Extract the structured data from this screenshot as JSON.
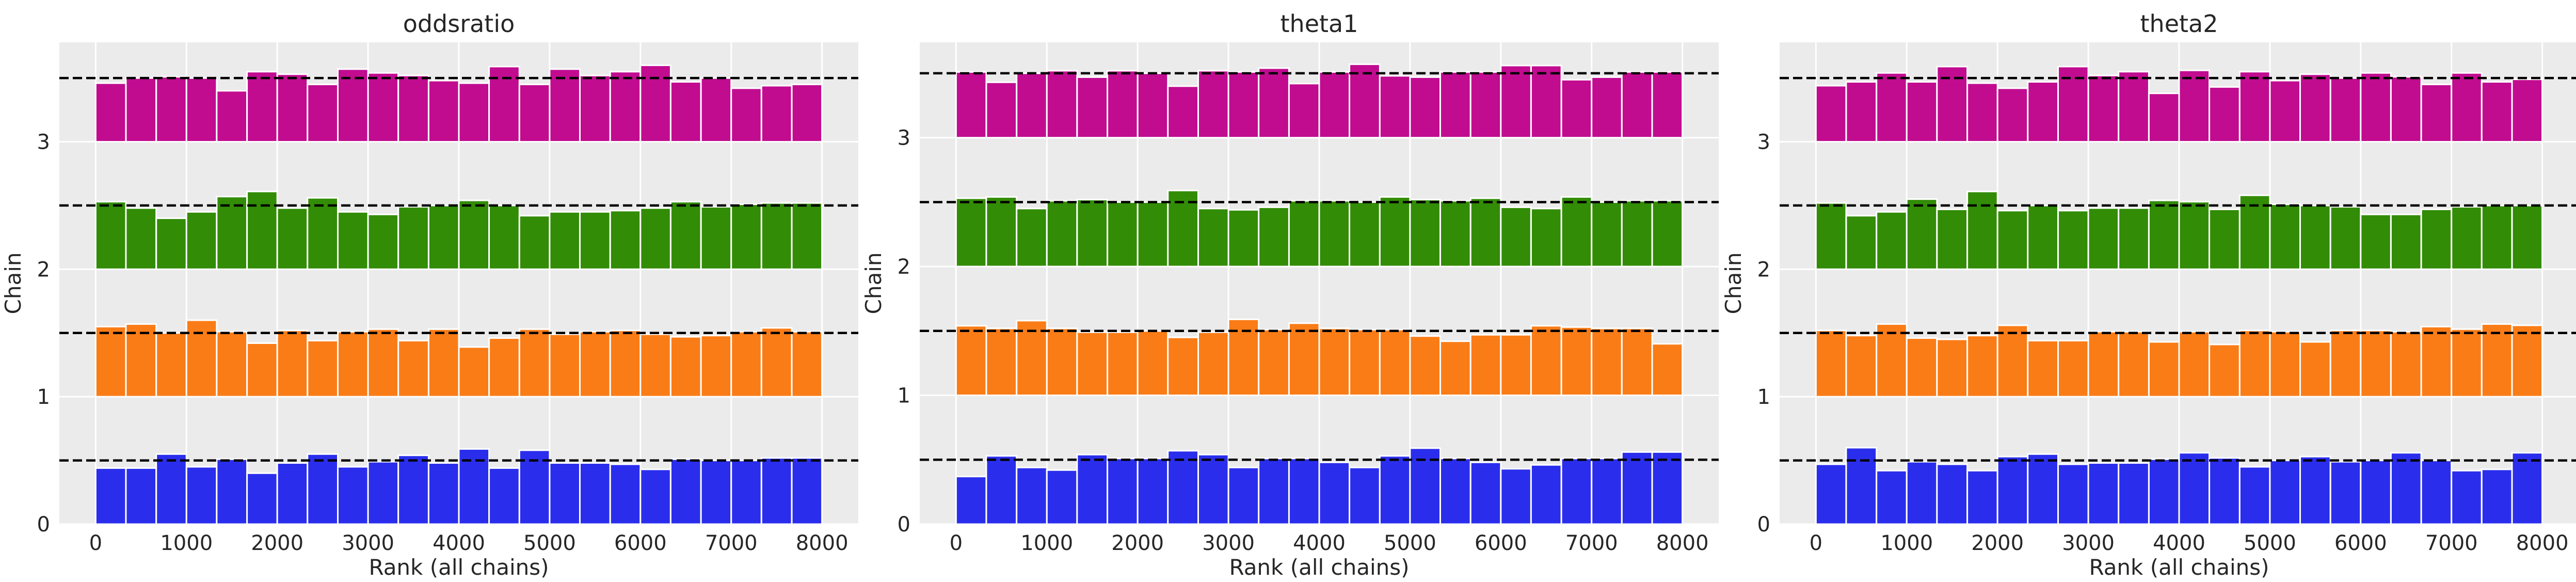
{
  "figure": {
    "colors": {
      "panel_bg": "#ebebeb",
      "grid": "#ffffff",
      "chain_colors": [
        "#2a2eec",
        "#fa7c17",
        "#328c06",
        "#c10c90"
      ],
      "reference_line": "#000000"
    }
  },
  "chart_data": [
    {
      "type": "bar",
      "title": "oddsratio",
      "xlabel": "Rank (all chains)",
      "ylabel": "Chain",
      "xlim": [
        -400,
        8400
      ],
      "xticks": [
        0,
        1000,
        2000,
        3000,
        4000,
        5000,
        6000,
        7000,
        8000
      ],
      "xtick_labels": [
        "0",
        "1000",
        "2000",
        "3000",
        "4000",
        "5000",
        "6000",
        "7000",
        "8000"
      ],
      "ylim": [
        0,
        3.78
      ],
      "yticks": [
        0,
        1,
        2,
        3
      ],
      "ytick_labels": [
        "0",
        "1",
        "2",
        "3"
      ],
      "grid": true,
      "bin_edges": [
        0,
        333,
        667,
        1000,
        1333,
        1667,
        2000,
        2333,
        2667,
        3000,
        3333,
        3667,
        4000,
        4333,
        4667,
        5000,
        5333,
        5667,
        6000,
        6333,
        6667,
        7000,
        7333,
        7667,
        8000
      ],
      "reference_offset": 0.5,
      "series": [
        {
          "chain": 0,
          "values": [
            0.44,
            0.44,
            0.55,
            0.45,
            0.51,
            0.4,
            0.48,
            0.55,
            0.45,
            0.49,
            0.54,
            0.48,
            0.59,
            0.44,
            0.58,
            0.48,
            0.48,
            0.47,
            0.43,
            0.51,
            0.5,
            0.5,
            0.52,
            0.52
          ]
        },
        {
          "chain": 1,
          "values": [
            0.55,
            0.57,
            0.5,
            0.6,
            0.51,
            0.42,
            0.52,
            0.44,
            0.51,
            0.53,
            0.44,
            0.53,
            0.39,
            0.46,
            0.53,
            0.49,
            0.51,
            0.52,
            0.49,
            0.47,
            0.48,
            0.51,
            0.54,
            0.51
          ]
        },
        {
          "chain": 2,
          "values": [
            0.53,
            0.48,
            0.4,
            0.45,
            0.57,
            0.61,
            0.48,
            0.56,
            0.45,
            0.43,
            0.49,
            0.5,
            0.54,
            0.5,
            0.42,
            0.45,
            0.45,
            0.46,
            0.48,
            0.53,
            0.49,
            0.51,
            0.52,
            0.52
          ]
        },
        {
          "chain": 3,
          "values": [
            0.46,
            0.5,
            0.51,
            0.5,
            0.4,
            0.55,
            0.53,
            0.45,
            0.57,
            0.54,
            0.52,
            0.48,
            0.46,
            0.59,
            0.45,
            0.57,
            0.52,
            0.55,
            0.6,
            0.47,
            0.5,
            0.42,
            0.44,
            0.45
          ]
        }
      ]
    },
    {
      "type": "bar",
      "title": "theta1",
      "xlabel": "Rank (all chains)",
      "ylabel": "Chain",
      "xlim": [
        -400,
        8400
      ],
      "xticks": [
        0,
        1000,
        2000,
        3000,
        4000,
        5000,
        6000,
        7000,
        8000
      ],
      "xtick_labels": [
        "0",
        "1000",
        "2000",
        "3000",
        "4000",
        "5000",
        "6000",
        "7000",
        "8000"
      ],
      "ylim": [
        0,
        3.74
      ],
      "yticks": [
        0,
        1,
        2,
        3
      ],
      "ytick_labels": [
        "0",
        "1",
        "2",
        "3"
      ],
      "grid": true,
      "bin_edges": [
        0,
        333,
        667,
        1000,
        1333,
        1667,
        2000,
        2333,
        2667,
        3000,
        3333,
        3667,
        4000,
        4333,
        4667,
        5000,
        5333,
        5667,
        6000,
        6333,
        6667,
        7000,
        7333,
        7667,
        8000
      ],
      "reference_offset": 0.5,
      "series": [
        {
          "chain": 0,
          "values": [
            0.37,
            0.53,
            0.44,
            0.42,
            0.54,
            0.51,
            0.51,
            0.57,
            0.54,
            0.44,
            0.51,
            0.51,
            0.48,
            0.44,
            0.53,
            0.59,
            0.51,
            0.48,
            0.43,
            0.46,
            0.51,
            0.51,
            0.56,
            0.56
          ]
        },
        {
          "chain": 1,
          "values": [
            0.54,
            0.52,
            0.58,
            0.52,
            0.49,
            0.49,
            0.5,
            0.45,
            0.49,
            0.59,
            0.51,
            0.56,
            0.52,
            0.51,
            0.51,
            0.46,
            0.42,
            0.47,
            0.47,
            0.54,
            0.53,
            0.52,
            0.52,
            0.4
          ]
        },
        {
          "chain": 2,
          "values": [
            0.53,
            0.54,
            0.45,
            0.51,
            0.52,
            0.5,
            0.5,
            0.59,
            0.45,
            0.44,
            0.46,
            0.51,
            0.51,
            0.5,
            0.54,
            0.52,
            0.51,
            0.53,
            0.46,
            0.45,
            0.54,
            0.5,
            0.51,
            0.51
          ]
        },
        {
          "chain": 3,
          "values": [
            0.51,
            0.43,
            0.5,
            0.52,
            0.47,
            0.52,
            0.5,
            0.4,
            0.52,
            0.51,
            0.54,
            0.42,
            0.51,
            0.57,
            0.48,
            0.47,
            0.51,
            0.51,
            0.56,
            0.56,
            0.45,
            0.47,
            0.51,
            0.51
          ]
        }
      ]
    },
    {
      "type": "bar",
      "title": "theta2",
      "xlabel": "Rank (all chains)",
      "ylabel": "Chain",
      "xlim": [
        -400,
        8400
      ],
      "xticks": [
        0,
        1000,
        2000,
        3000,
        4000,
        5000,
        6000,
        7000,
        8000
      ],
      "xtick_labels": [
        "0",
        "1000",
        "2000",
        "3000",
        "4000",
        "5000",
        "6000",
        "7000",
        "8000"
      ],
      "ylim": [
        0,
        3.78
      ],
      "yticks": [
        0,
        1,
        2,
        3
      ],
      "ytick_labels": [
        "0",
        "1",
        "2",
        "3"
      ],
      "grid": true,
      "bin_edges": [
        0,
        333,
        667,
        1000,
        1333,
        1667,
        2000,
        2333,
        2667,
        3000,
        3333,
        3667,
        4000,
        4333,
        4667,
        5000,
        5333,
        5667,
        6000,
        6333,
        6667,
        7000,
        7333,
        7667,
        8000
      ],
      "reference_offset": 0.5,
      "series": [
        {
          "chain": 0,
          "values": [
            0.47,
            0.6,
            0.42,
            0.49,
            0.47,
            0.42,
            0.53,
            0.55,
            0.47,
            0.48,
            0.48,
            0.51,
            0.56,
            0.52,
            0.45,
            0.5,
            0.53,
            0.49,
            0.5,
            0.56,
            0.5,
            0.42,
            0.43,
            0.56
          ]
        },
        {
          "chain": 1,
          "values": [
            0.52,
            0.48,
            0.57,
            0.46,
            0.45,
            0.48,
            0.56,
            0.44,
            0.44,
            0.51,
            0.51,
            0.43,
            0.51,
            0.41,
            0.52,
            0.51,
            0.43,
            0.52,
            0.52,
            0.51,
            0.55,
            0.53,
            0.57,
            0.56
          ]
        },
        {
          "chain": 2,
          "values": [
            0.52,
            0.42,
            0.45,
            0.55,
            0.47,
            0.61,
            0.46,
            0.5,
            0.46,
            0.48,
            0.48,
            0.54,
            0.53,
            0.47,
            0.58,
            0.51,
            0.5,
            0.49,
            0.43,
            0.43,
            0.47,
            0.49,
            0.5,
            0.5
          ]
        },
        {
          "chain": 3,
          "values": [
            0.44,
            0.47,
            0.54,
            0.47,
            0.59,
            0.46,
            0.42,
            0.47,
            0.59,
            0.52,
            0.55,
            0.38,
            0.56,
            0.43,
            0.55,
            0.48,
            0.53,
            0.5,
            0.54,
            0.51,
            0.45,
            0.54,
            0.47,
            0.49
          ]
        }
      ]
    }
  ]
}
